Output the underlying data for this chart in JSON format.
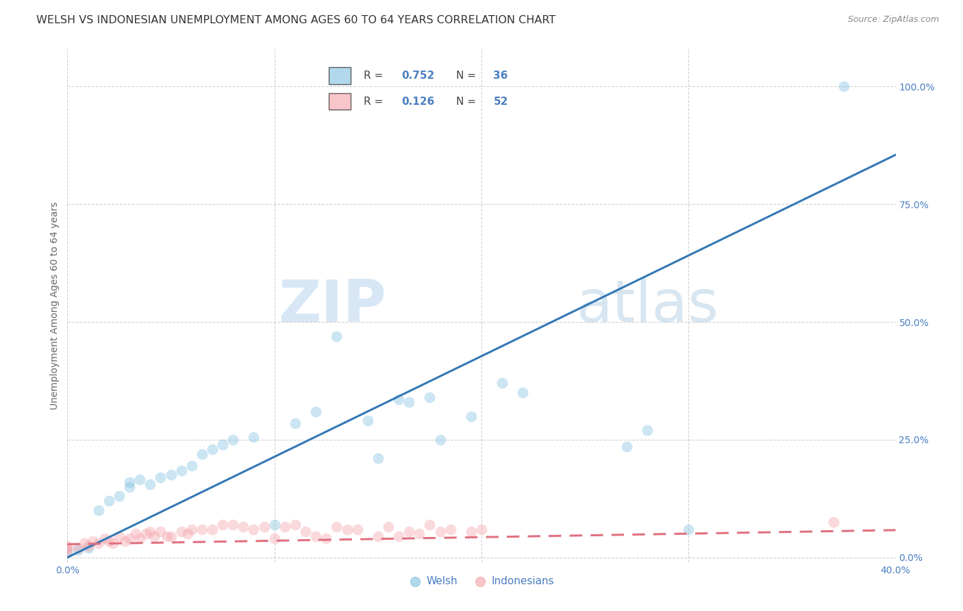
{
  "title": "WELSH VS INDONESIAN UNEMPLOYMENT AMONG AGES 60 TO 64 YEARS CORRELATION CHART",
  "source": "Source: ZipAtlas.com",
  "ylabel": "Unemployment Among Ages 60 to 64 years",
  "xlim": [
    0.0,
    0.4
  ],
  "ylim": [
    -0.01,
    1.08
  ],
  "yticks": [
    0.0,
    0.25,
    0.5,
    0.75,
    1.0
  ],
  "ytick_labels": [
    "0.0%",
    "25.0%",
    "50.0%",
    "75.0%",
    "100.0%"
  ],
  "xticks": [
    0.0,
    0.1,
    0.2,
    0.3,
    0.4
  ],
  "xtick_labels": [
    "0.0%",
    "",
    "",
    "",
    "40.0%"
  ],
  "welsh_color": "#7fbfdf",
  "indonesian_color": "#f4a0a8",
  "welsh_line_color": "#3478b5",
  "indonesian_line_color": "#e07080",
  "background_color": "#ffffff",
  "grid_color": "#cccccc",
  "watermark_zip": "ZIP",
  "watermark_atlas": "atlas",
  "title_fontsize": 11.5,
  "axis_label_fontsize": 10,
  "tick_fontsize": 10,
  "source_fontsize": 9,
  "marker_size": 130,
  "marker_alpha": 0.4,
  "line_width": 2.2,
  "welsh_x": [
    0.0,
    0.005,
    0.01,
    0.015,
    0.02,
    0.025,
    0.03,
    0.03,
    0.035,
    0.04,
    0.045,
    0.05,
    0.055,
    0.06,
    0.065,
    0.07,
    0.075,
    0.08,
    0.09,
    0.1,
    0.11,
    0.12,
    0.13,
    0.145,
    0.15,
    0.16,
    0.165,
    0.175,
    0.18,
    0.195,
    0.21,
    0.22,
    0.27,
    0.28,
    0.3,
    0.375
  ],
  "welsh_y": [
    0.01,
    0.015,
    0.02,
    0.1,
    0.12,
    0.13,
    0.15,
    0.16,
    0.165,
    0.155,
    0.17,
    0.175,
    0.185,
    0.195,
    0.22,
    0.23,
    0.24,
    0.25,
    0.255,
    0.07,
    0.285,
    0.31,
    0.47,
    0.29,
    0.21,
    0.335,
    0.33,
    0.34,
    0.25,
    0.3,
    0.37,
    0.35,
    0.235,
    0.27,
    0.06,
    1.0
  ],
  "indonesian_x": [
    0.0,
    0.0,
    0.0,
    0.005,
    0.008,
    0.01,
    0.012,
    0.015,
    0.018,
    0.02,
    0.022,
    0.025,
    0.028,
    0.03,
    0.033,
    0.035,
    0.038,
    0.04,
    0.042,
    0.045,
    0.048,
    0.05,
    0.055,
    0.058,
    0.06,
    0.065,
    0.07,
    0.075,
    0.08,
    0.085,
    0.09,
    0.095,
    0.1,
    0.105,
    0.11,
    0.115,
    0.12,
    0.125,
    0.13,
    0.135,
    0.14,
    0.15,
    0.155,
    0.16,
    0.165,
    0.17,
    0.175,
    0.18,
    0.185,
    0.195,
    0.2,
    0.37
  ],
  "indonesian_y": [
    0.015,
    0.02,
    0.025,
    0.02,
    0.03,
    0.025,
    0.035,
    0.03,
    0.04,
    0.035,
    0.03,
    0.045,
    0.035,
    0.04,
    0.05,
    0.04,
    0.05,
    0.055,
    0.045,
    0.055,
    0.045,
    0.045,
    0.055,
    0.05,
    0.06,
    0.06,
    0.06,
    0.07,
    0.07,
    0.065,
    0.06,
    0.065,
    0.04,
    0.065,
    0.07,
    0.055,
    0.045,
    0.04,
    0.065,
    0.06,
    0.06,
    0.045,
    0.065,
    0.045,
    0.055,
    0.05,
    0.07,
    0.055,
    0.06,
    0.055,
    0.06,
    0.075
  ]
}
